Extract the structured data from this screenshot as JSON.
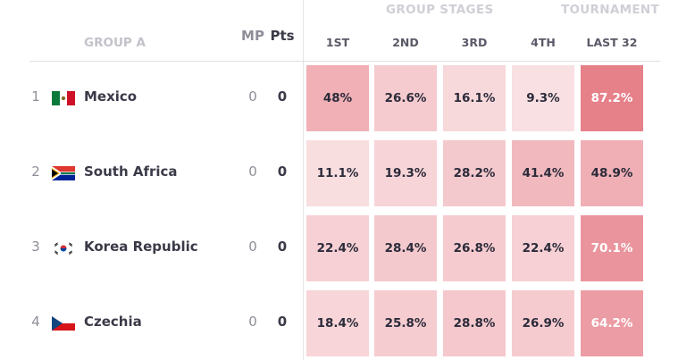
{
  "header": {
    "group_stages": "GROUP STAGES",
    "tournament": "TOURNAMENT",
    "group_label": "GROUP A",
    "mp": "MP",
    "pts": "Pts",
    "columns": [
      "1ST",
      "2ND",
      "3RD",
      "4TH",
      "LAST 32"
    ]
  },
  "rows": [
    {
      "rank": "1",
      "team": "Mexico",
      "flag": "mexico-flag-icon",
      "mp": "0",
      "pts": "0",
      "values": [
        "48%",
        "26.6%",
        "16.1%",
        "9.3%",
        "87.2%"
      ]
    },
    {
      "rank": "2",
      "team": "South Africa",
      "flag": "south-africa-flag-icon",
      "mp": "0",
      "pts": "0",
      "values": [
        "11.1%",
        "19.3%",
        "28.2%",
        "41.4%",
        "48.9%"
      ]
    },
    {
      "rank": "3",
      "team": "Korea Republic",
      "flag": "korea-republic-flag-icon",
      "mp": "0",
      "pts": "0",
      "values": [
        "22.4%",
        "28.4%",
        "26.8%",
        "22.4%",
        "70.1%"
      ]
    },
    {
      "rank": "4",
      "team": "Czechia",
      "flag": "czechia-flag-icon",
      "mp": "0",
      "pts": "0",
      "values": [
        "18.4%",
        "25.8%",
        "28.8%",
        "26.9%",
        "64.2%"
      ]
    }
  ],
  "colors": {
    "heat_base": "#e0606c",
    "header_faint": "#cfcfd6",
    "text_dark": "#2b2b3a"
  }
}
